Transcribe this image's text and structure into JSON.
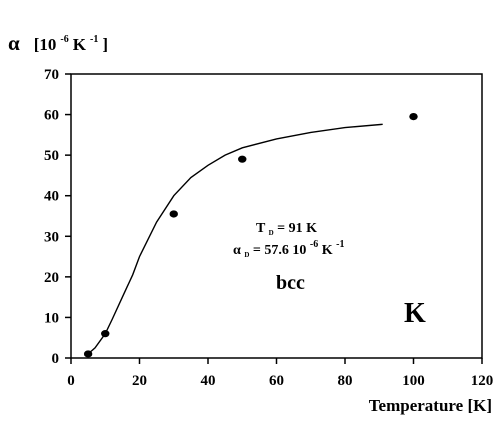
{
  "chart_data": {
    "type": "scatter",
    "ylabel": {
      "symbol": "α",
      "unit_open": "[10",
      "unit_exp": "-6",
      "unit_mid": "K",
      "unit_exp2": "-1",
      "unit_close": "]"
    },
    "xlabel": "Temperature [K]",
    "xlim": [
      0,
      120
    ],
    "ylim": [
      0,
      70
    ],
    "x_ticks": [
      0,
      20,
      40,
      60,
      80,
      100,
      120
    ],
    "y_ticks": [
      0,
      10,
      20,
      30,
      40,
      50,
      60,
      70
    ],
    "series": [
      {
        "kind": "points",
        "x": [
          5,
          10,
          30,
          50,
          100
        ],
        "y": [
          1,
          6,
          35.5,
          49,
          59.5
        ]
      },
      {
        "kind": "line",
        "x": [
          5,
          7,
          10,
          12,
          15,
          18,
          20,
          25,
          30,
          35,
          40,
          45,
          50,
          60,
          70,
          80,
          91
        ],
        "y": [
          1,
          2.5,
          6,
          9.5,
          15,
          20.5,
          25,
          33.5,
          40,
          44.5,
          47.5,
          50,
          51.8,
          54,
          55.6,
          56.8,
          57.6
        ]
      }
    ],
    "annotations": {
      "td_main": "T",
      "td_sub": "D",
      "td_value": " = 91 K",
      "ad_main": "α",
      "ad_sub": "D",
      "ad_value": " = 57.6 10",
      "ad_exp": "-6",
      "ad_unit": " K",
      "ad_exp2": "-1",
      "phase": "bcc",
      "element": "K"
    }
  }
}
